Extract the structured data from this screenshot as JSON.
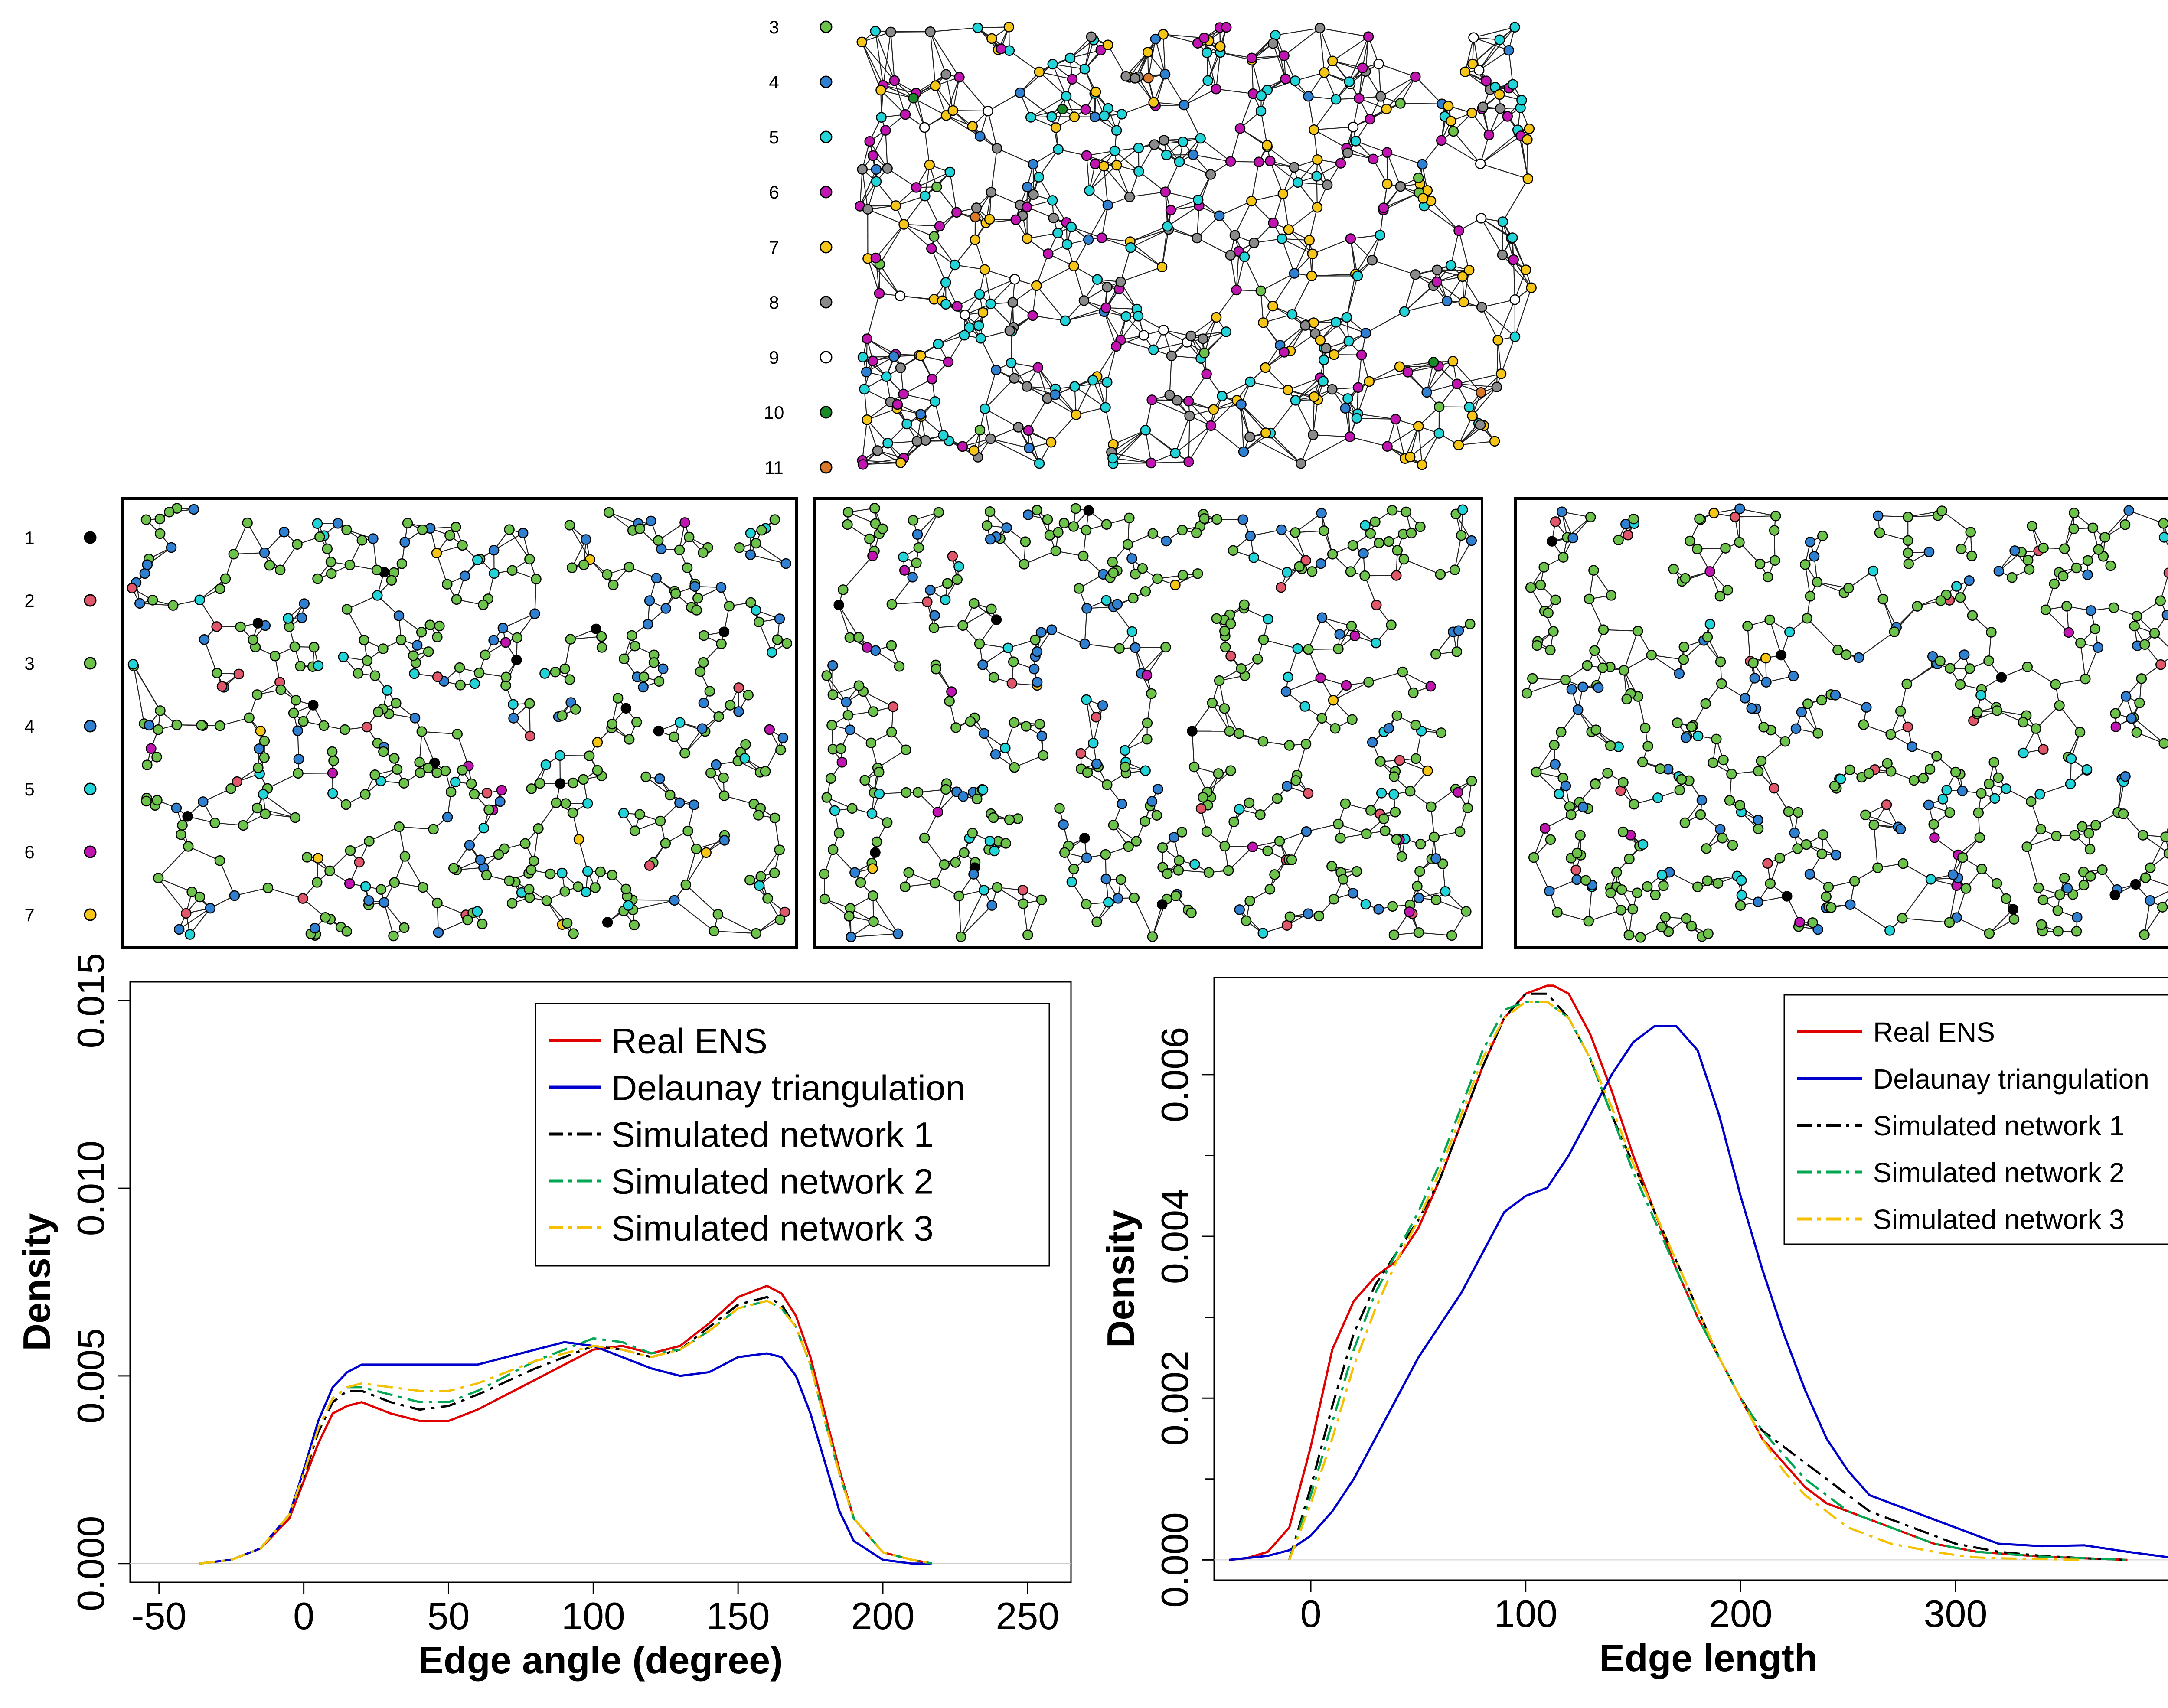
{
  "colors": {
    "degree": {
      "1": "#000000",
      "2": "#e0566a",
      "3": "#6cc24a",
      "4": "#2f80d0",
      "5": "#22d3d8",
      "6": "#c015b0",
      "7": "#f5c518",
      "8": "#8a8a8a",
      "9": "#ffffff",
      "10": "#1a8a2a",
      "11": "#d87a2a"
    },
    "real": "#e00000",
    "delaunay": "#0000cc",
    "sim1": "#000000",
    "sim2": "#00a651",
    "sim3": "#f5c000"
  },
  "top_legend": {
    "labels": [
      "3",
      "4",
      "5",
      "6",
      "7",
      "8",
      "9",
      "10",
      "11"
    ],
    "color_keys": [
      "3",
      "4",
      "5",
      "6",
      "7",
      "8",
      "9",
      "10",
      "11"
    ]
  },
  "mid_legend": {
    "labels": [
      "1",
      "2",
      "3",
      "4",
      "5",
      "6",
      "7"
    ],
    "color_keys": [
      "1",
      "2",
      "3",
      "4",
      "5",
      "6",
      "7"
    ]
  },
  "chart_data": [
    {
      "type": "line",
      "xlabel": "Edge angle (degree)",
      "ylabel": "Density",
      "xlim": [
        -60,
        265
      ],
      "ylim": [
        -0.0005,
        0.0155
      ],
      "xticks": [
        "-50",
        "0",
        "50",
        "100",
        "150",
        "200",
        "250"
      ],
      "yticks": [
        "0.000",
        "0.005",
        "0.010",
        "0.015"
      ],
      "legend_position": "top-right",
      "legend": [
        {
          "label": "Real ENS",
          "color_key": "real",
          "style": "solid"
        },
        {
          "label": "Delaunay triangulation",
          "color_key": "delaunay",
          "style": "solid"
        },
        {
          "label": "Simulated network 1",
          "color_key": "sim1",
          "style": "dashdot"
        },
        {
          "label": "Simulated network 2",
          "color_key": "sim2",
          "style": "dashdot"
        },
        {
          "label": "Simulated network 3",
          "color_key": "sim3",
          "style": "dashdot"
        }
      ],
      "series": [
        {
          "color_key": "real",
          "style": "solid",
          "x": [
            -36,
            -25,
            -15,
            -5,
            0,
            5,
            10,
            15,
            20,
            30,
            40,
            50,
            60,
            80,
            100,
            110,
            120,
            130,
            140,
            150,
            160,
            165,
            170,
            175,
            180,
            185,
            190,
            200,
            210,
            217
          ],
          "y": [
            0,
            0.0001,
            0.0004,
            0.0012,
            0.0022,
            0.0032,
            0.004,
            0.0042,
            0.0043,
            0.004,
            0.0038,
            0.0038,
            0.0041,
            0.0049,
            0.0057,
            0.0058,
            0.0056,
            0.0058,
            0.0064,
            0.0071,
            0.0074,
            0.0072,
            0.0066,
            0.0055,
            0.004,
            0.0025,
            0.0012,
            0.0003,
            0.0001,
            0
          ]
        },
        {
          "color_key": "delaunay",
          "style": "solid",
          "x": [
            -36,
            -25,
            -15,
            -5,
            0,
            5,
            10,
            15,
            20,
            30,
            40,
            50,
            60,
            80,
            90,
            100,
            110,
            120,
            130,
            140,
            150,
            160,
            165,
            170,
            175,
            180,
            185,
            190,
            200,
            210,
            217
          ],
          "y": [
            0,
            0.0001,
            0.0004,
            0.0013,
            0.0025,
            0.0038,
            0.0047,
            0.0051,
            0.0053,
            0.0053,
            0.0053,
            0.0053,
            0.0053,
            0.0057,
            0.0059,
            0.0058,
            0.0055,
            0.0052,
            0.005,
            0.0051,
            0.0055,
            0.0056,
            0.0055,
            0.005,
            0.004,
            0.0027,
            0.0014,
            0.0006,
            0.0001,
            0,
            0
          ]
        },
        {
          "color_key": "sim1",
          "style": "dashdot",
          "x": [
            -36,
            -25,
            -15,
            -5,
            0,
            5,
            10,
            15,
            20,
            30,
            40,
            50,
            60,
            80,
            100,
            110,
            120,
            130,
            140,
            150,
            160,
            165,
            170,
            175,
            180,
            185,
            190,
            200,
            210,
            217
          ],
          "y": [
            0,
            0.0001,
            0.0004,
            0.0013,
            0.0023,
            0.0035,
            0.0043,
            0.0046,
            0.0046,
            0.0043,
            0.0041,
            0.0042,
            0.0045,
            0.0052,
            0.0058,
            0.0057,
            0.0055,
            0.0057,
            0.0063,
            0.0069,
            0.0071,
            0.0069,
            0.0063,
            0.0053,
            0.0038,
            0.0024,
            0.0012,
            0.0003,
            0.0001,
            0
          ]
        },
        {
          "color_key": "sim2",
          "style": "dashdot",
          "x": [
            -36,
            -25,
            -15,
            -5,
            0,
            5,
            10,
            15,
            20,
            30,
            40,
            50,
            60,
            80,
            100,
            110,
            120,
            130,
            140,
            150,
            160,
            165,
            170,
            175,
            180,
            185,
            190,
            200,
            210,
            217
          ],
          "y": [
            0,
            0.0001,
            0.0004,
            0.0013,
            0.0024,
            0.0036,
            0.0044,
            0.0047,
            0.0047,
            0.0045,
            0.0043,
            0.0043,
            0.0046,
            0.0054,
            0.006,
            0.0059,
            0.0056,
            0.0057,
            0.0062,
            0.0068,
            0.007,
            0.0068,
            0.0063,
            0.0053,
            0.0038,
            0.0024,
            0.0012,
            0.0003,
            0.0001,
            0
          ]
        },
        {
          "color_key": "sim3",
          "style": "dashdot",
          "x": [
            -36,
            -25,
            -15,
            -5,
            0,
            5,
            10,
            15,
            20,
            30,
            40,
            50,
            60,
            80,
            100,
            110,
            120,
            130,
            140,
            150,
            160,
            165,
            170,
            175,
            180,
            185,
            190,
            200,
            210,
            217
          ],
          "y": [
            0,
            0.0001,
            0.0004,
            0.0013,
            0.0024,
            0.0036,
            0.0044,
            0.0047,
            0.0048,
            0.0047,
            0.0046,
            0.0046,
            0.0048,
            0.0054,
            0.0058,
            0.0057,
            0.0055,
            0.0057,
            0.0062,
            0.0068,
            0.007,
            0.0068,
            0.0063,
            0.0053,
            0.0038,
            0.0024,
            0.0012,
            0.0003,
            0.0001,
            0
          ]
        }
      ]
    },
    {
      "type": "line",
      "xlabel": "Edge length",
      "ylabel": "Density",
      "xlim": [
        -45,
        415
      ],
      "ylim": [
        -0.00025,
        0.0072
      ],
      "xticks": [
        "0",
        "100",
        "200",
        "300"
      ],
      "yticks": [
        "0.000",
        "0.002",
        "0.004",
        "0.006"
      ],
      "legend_position": "top-right",
      "legend": [
        {
          "label": "Real ENS",
          "color_key": "real",
          "style": "solid"
        },
        {
          "label": "Delaunay triangulation",
          "color_key": "delaunay",
          "style": "solid"
        },
        {
          "label": "Simulated network 1",
          "color_key": "sim1",
          "style": "dashdot"
        },
        {
          "label": "Simulated network 2",
          "color_key": "sim2",
          "style": "dashdot"
        },
        {
          "label": "Simulated network 3",
          "color_key": "sim3",
          "style": "dashdot"
        }
      ],
      "series": [
        {
          "color_key": "real",
          "style": "solid",
          "x": [
            -38,
            -30,
            -20,
            -10,
            0,
            10,
            20,
            30,
            40,
            50,
            60,
            70,
            80,
            90,
            100,
            110,
            113,
            120,
            130,
            140,
            150,
            160,
            170,
            180,
            190,
            200,
            210,
            220,
            230,
            240,
            250,
            260,
            270,
            280,
            290,
            300,
            310,
            320,
            340,
            360,
            380
          ],
          "y": [
            0,
            2e-05,
            0.0001,
            0.0004,
            0.0014,
            0.0026,
            0.0032,
            0.0035,
            0.0037,
            0.0041,
            0.0047,
            0.0054,
            0.0061,
            0.0067,
            0.007,
            0.0071,
            0.0071,
            0.007,
            0.0065,
            0.0058,
            0.005,
            0.0043,
            0.0036,
            0.003,
            0.0025,
            0.002,
            0.0015,
            0.0012,
            0.0009,
            0.0007,
            0.0006,
            0.0005,
            0.0004,
            0.0003,
            0.0002,
            0.00015,
            0.0001,
            8e-05,
            4e-05,
            2e-05,
            0
          ]
        },
        {
          "color_key": "delaunay",
          "style": "solid",
          "x": [
            -38,
            -20,
            -10,
            0,
            10,
            20,
            30,
            40,
            50,
            60,
            70,
            80,
            90,
            100,
            110,
            120,
            130,
            140,
            150,
            160,
            170,
            180,
            190,
            200,
            210,
            220,
            230,
            240,
            250,
            260,
            270,
            280,
            290,
            300,
            310,
            320,
            340,
            360,
            380,
            400,
            415
          ],
          "y": [
            0,
            5e-05,
            0.00012,
            0.0003,
            0.0006,
            0.001,
            0.0015,
            0.002,
            0.0025,
            0.0029,
            0.0033,
            0.0038,
            0.0043,
            0.0045,
            0.0046,
            0.005,
            0.0055,
            0.006,
            0.0064,
            0.0066,
            0.0066,
            0.0063,
            0.0055,
            0.0045,
            0.0036,
            0.0028,
            0.0021,
            0.0015,
            0.0011,
            0.0008,
            0.0007,
            0.0006,
            0.0005,
            0.0004,
            0.0003,
            0.0002,
            0.00017,
            0.00018,
            0.0001,
            3e-05,
            0
          ]
        },
        {
          "color_key": "sim1",
          "style": "dashdot",
          "x": [
            -10,
            0,
            10,
            20,
            30,
            40,
            50,
            60,
            70,
            80,
            90,
            100,
            105,
            110,
            120,
            130,
            140,
            150,
            160,
            170,
            180,
            190,
            200,
            210,
            220,
            230,
            240,
            250,
            260,
            270,
            280,
            290,
            300,
            310,
            320,
            340,
            360,
            380
          ],
          "y": [
            0,
            0.0009,
            0.0019,
            0.0028,
            0.0034,
            0.0038,
            0.0042,
            0.0047,
            0.0054,
            0.0061,
            0.0067,
            0.007,
            0.007,
            0.007,
            0.0067,
            0.0062,
            0.0055,
            0.0049,
            0.0043,
            0.0037,
            0.0031,
            0.0025,
            0.002,
            0.0016,
            0.0014,
            0.0012,
            0.001,
            0.0008,
            0.0006,
            0.0005,
            0.0004,
            0.0003,
            0.0002,
            0.00015,
            0.0001,
            5e-05,
            2e-05,
            0
          ]
        },
        {
          "color_key": "sim2",
          "style": "dashdot",
          "x": [
            -10,
            0,
            10,
            20,
            30,
            40,
            50,
            60,
            70,
            80,
            90,
            100,
            105,
            110,
            120,
            130,
            140,
            150,
            160,
            170,
            180,
            190,
            200,
            210,
            220,
            230,
            240,
            250,
            260,
            270,
            280,
            290,
            300,
            310,
            320,
            340,
            360,
            380
          ],
          "y": [
            0,
            0.0008,
            0.0017,
            0.0026,
            0.0033,
            0.0038,
            0.0043,
            0.0049,
            0.0056,
            0.0063,
            0.0068,
            0.0069,
            0.0069,
            0.0069,
            0.0067,
            0.0062,
            0.0055,
            0.0048,
            0.0042,
            0.0036,
            0.003,
            0.0025,
            0.002,
            0.0016,
            0.0013,
            0.001,
            0.0008,
            0.0006,
            0.0005,
            0.0004,
            0.0003,
            0.0002,
            0.00015,
            0.0001,
            8e-05,
            4e-05,
            2e-05,
            0
          ]
        },
        {
          "color_key": "sim3",
          "style": "dashdot",
          "x": [
            -10,
            0,
            10,
            20,
            30,
            40,
            50,
            60,
            70,
            80,
            90,
            100,
            105,
            110,
            120,
            130,
            140,
            150,
            160,
            170,
            180,
            190,
            200,
            210,
            220,
            230,
            240,
            250,
            260,
            270,
            280,
            290,
            300,
            310,
            320,
            340,
            360
          ],
          "y": [
            0,
            0.0007,
            0.0015,
            0.0024,
            0.0031,
            0.0037,
            0.0042,
            0.0048,
            0.0055,
            0.0062,
            0.0067,
            0.0069,
            0.0069,
            0.0069,
            0.0067,
            0.0062,
            0.0056,
            0.0049,
            0.0043,
            0.0037,
            0.0031,
            0.0025,
            0.002,
            0.0015,
            0.0011,
            0.0008,
            0.0006,
            0.0004,
            0.0003,
            0.0002,
            0.00015,
            0.0001,
            6e-05,
            3e-05,
            2e-05,
            1e-05,
            0
          ]
        }
      ]
    }
  ]
}
